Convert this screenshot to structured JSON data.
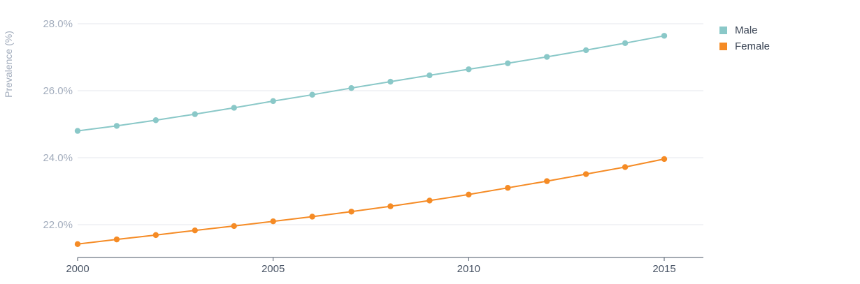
{
  "chart_data": {
    "type": "line",
    "ylabel": "Prevalence (%)",
    "xlabel": "",
    "x": [
      2000,
      2001,
      2002,
      2003,
      2004,
      2005,
      2006,
      2007,
      2008,
      2009,
      2010,
      2011,
      2012,
      2013,
      2014,
      2015
    ],
    "x_ticks": [
      2000,
      2005,
      2010,
      2015
    ],
    "x_tick_labels": [
      "2000",
      "2005",
      "2010",
      "2015"
    ],
    "xlim": [
      2000,
      2016
    ],
    "ylim": [
      21.0,
      28.2
    ],
    "y_ticks": [
      22.0,
      24.0,
      26.0,
      28.0
    ],
    "y_tick_labels": [
      "22.0%",
      "24.0%",
      "26.0%",
      "28.0%"
    ],
    "grid": true,
    "legend_position": "top-right",
    "series": [
      {
        "name": "Male",
        "color": "#8ac8c8",
        "values": [
          24.8,
          24.95,
          25.12,
          25.3,
          25.49,
          25.69,
          25.88,
          26.08,
          26.27,
          26.46,
          26.64,
          26.82,
          27.01,
          27.21,
          27.42,
          27.64
        ]
      },
      {
        "name": "Female",
        "color": "#f58b25",
        "values": [
          21.42,
          21.56,
          21.69,
          21.83,
          21.96,
          22.1,
          22.24,
          22.39,
          22.55,
          22.72,
          22.9,
          23.1,
          23.3,
          23.51,
          23.72,
          23.96
        ]
      }
    ]
  }
}
